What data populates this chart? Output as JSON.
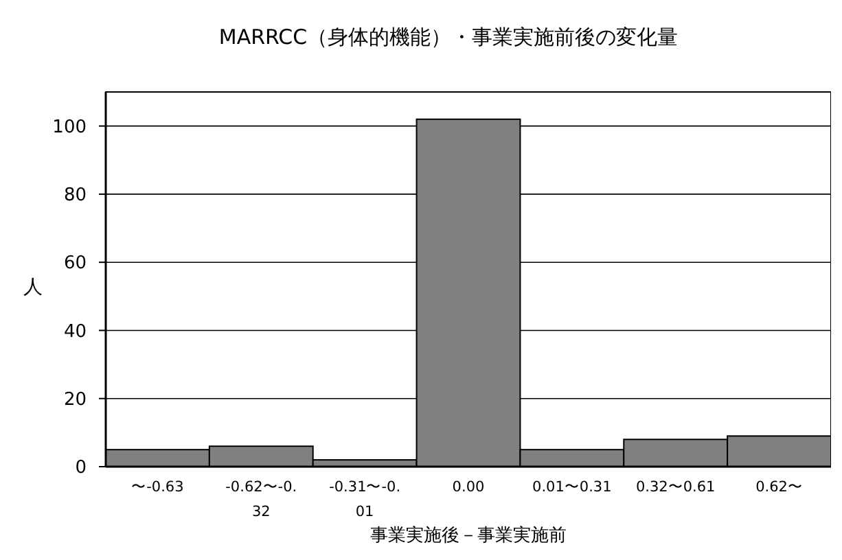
{
  "chart_data": {
    "type": "bar",
    "title": "MARRCC（身体的機能）・事業実施前後の変化量",
    "xlabel": "事業実施後－事業実施前",
    "ylabel": "人",
    "categories": [
      "〜-0.63",
      "-0.62〜-0.32",
      "-0.31〜-0.01",
      "0.00",
      "0.01〜0.31",
      "0.32〜0.61",
      "0.62〜"
    ],
    "values": [
      5,
      6,
      2,
      102,
      5,
      8,
      9
    ],
    "color": "#808080",
    "ylim": [
      0,
      110
    ],
    "yticks": [
      0,
      20,
      40,
      60,
      80,
      100
    ],
    "grid": "y"
  }
}
